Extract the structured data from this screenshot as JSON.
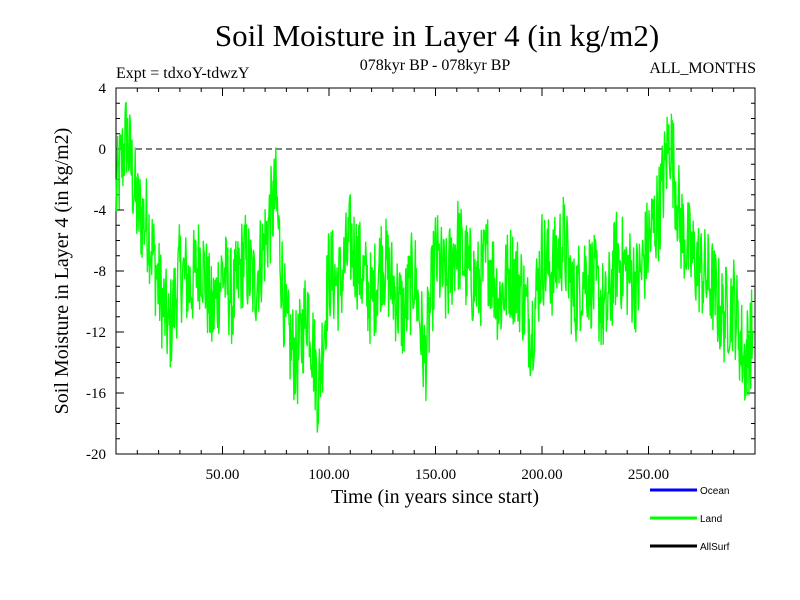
{
  "chart_data": {
    "type": "line",
    "title": "Soil Moisture in Layer 4 (in kg/m2)",
    "subtitle": "078kyr BP - 078kyr BP",
    "expt_label": "Expt = tdxoY-tdwzY",
    "months_label": "ALL_MONTHS",
    "xlabel": "Time (in years since start)",
    "ylabel": "Soil Moisture in Layer 4 (in kg/m2)",
    "xlim": [
      0,
      300
    ],
    "ylim": [
      -20,
      4
    ],
    "x_ticks": [
      50,
      100,
      150,
      200,
      250
    ],
    "x_tick_labels": [
      "50.00",
      "100.00",
      "150.00",
      "200.00",
      "250.00"
    ],
    "y_ticks": [
      4,
      0,
      -4,
      -8,
      -12,
      -16,
      -20
    ],
    "y_tick_labels": [
      "4",
      "0",
      "-4",
      "-8",
      "-12",
      "-16",
      "-20"
    ],
    "reference_line": 0,
    "legend_position": "bottom-right",
    "legend": [
      {
        "name": "Ocean",
        "color": "#0000ff"
      },
      {
        "name": "Land",
        "color": "#00ff00"
      },
      {
        "name": "AllSurf",
        "color": "#000000"
      }
    ],
    "series": [
      {
        "name": "Land",
        "color": "#00ff00",
        "x": [
          0,
          5,
          10,
          15,
          20,
          25,
          30,
          35,
          40,
          45,
          50,
          55,
          60,
          65,
          70,
          75,
          80,
          85,
          90,
          95,
          100,
          105,
          110,
          115,
          120,
          125,
          130,
          135,
          140,
          145,
          150,
          155,
          160,
          165,
          170,
          175,
          180,
          185,
          190,
          195,
          200,
          205,
          210,
          215,
          220,
          225,
          230,
          235,
          240,
          245,
          250,
          255,
          260,
          265,
          270,
          275,
          280,
          285,
          290,
          295,
          299
        ],
        "y": [
          -3,
          1,
          -4,
          -5,
          -9,
          -12,
          -8,
          -9,
          -7,
          -11,
          -8,
          -10,
          -7,
          -9,
          -6,
          -3,
          -12,
          -14,
          -10,
          -16,
          -8,
          -9,
          -6,
          -8,
          -10,
          -7,
          -9,
          -11,
          -8,
          -14,
          -7,
          -9,
          -6,
          -8,
          -9,
          -7,
          -10,
          -8,
          -9,
          -12,
          -7,
          -8,
          -6,
          -10,
          -8,
          -9,
          -11,
          -7,
          -8,
          -9,
          -6,
          -4,
          1,
          -5,
          -7,
          -8,
          -9,
          -11,
          -10,
          -14,
          -12
        ]
      }
    ]
  }
}
